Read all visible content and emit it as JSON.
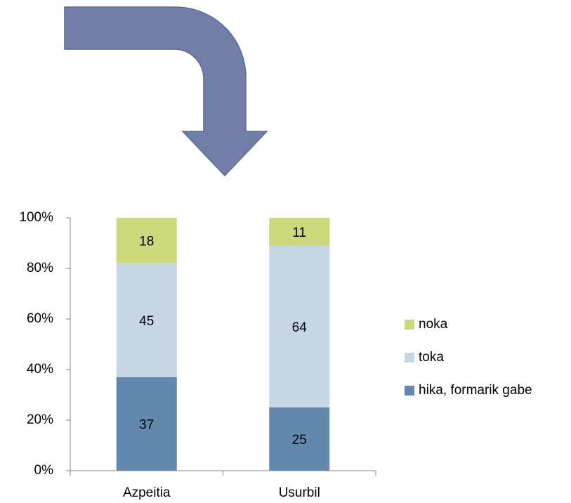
{
  "chart_data": {
    "type": "stacked_bar",
    "categories": [
      "Azpeitia",
      "Usurbil"
    ],
    "series": [
      {
        "name": "hika, formarik gabe",
        "color": "#6289ad",
        "values": [
          37,
          25
        ]
      },
      {
        "name": "toka",
        "color": "#c7d6e4",
        "values": [
          45,
          64
        ]
      },
      {
        "name": "noka",
        "color": "#cdd77c",
        "values": [
          18,
          11
        ]
      }
    ],
    "ylim": [
      0,
      100
    ],
    "yticks": [
      {
        "value": 0,
        "label": "0%"
      },
      {
        "value": 20,
        "label": "20%"
      },
      {
        "value": 40,
        "label": "40%"
      },
      {
        "value": 60,
        "label": "60%"
      },
      {
        "value": 80,
        "label": "80%"
      },
      {
        "value": 100,
        "label": "100%"
      }
    ],
    "legend": "right"
  }
}
